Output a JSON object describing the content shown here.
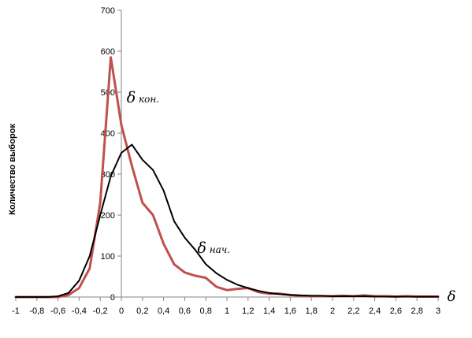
{
  "chart_data": {
    "type": "line",
    "ylabel": "Количество выборок",
    "xlabel": "δ",
    "xlim": [
      -1,
      3
    ],
    "ylim": [
      0,
      700
    ],
    "x_ticks": [
      "-1",
      "-0,8",
      "-0,6",
      "-0,4",
      "-0,2",
      "0",
      "0,2",
      "0,4",
      "0,6",
      "0,8",
      "1",
      "1,2",
      "1,4",
      "1,6",
      "1,8",
      "2",
      "2,2",
      "2,4",
      "2,6",
      "2,8",
      "3"
    ],
    "y_ticks": [
      "0",
      "100",
      "200",
      "300",
      "400",
      "500",
      "600",
      "700"
    ],
    "grid": false,
    "legend": "none",
    "x": [
      -1,
      -0.9,
      -0.8,
      -0.7,
      -0.6,
      -0.5,
      -0.4,
      -0.3,
      -0.2,
      -0.1,
      0,
      0.1,
      0.2,
      0.3,
      0.4,
      0.5,
      0.6,
      0.7,
      0.8,
      0.9,
      1,
      1.1,
      1.2,
      1.3,
      1.4,
      1.5,
      1.6,
      1.7,
      1.8,
      1.9,
      2,
      2.1,
      2.2,
      2.3,
      2.4,
      2.5,
      2.6,
      2.7,
      2.8,
      2.9,
      3
    ],
    "series": [
      {
        "name": "δ кон.",
        "color": "#c0504d",
        "values": [
          0,
          0,
          0,
          0,
          0,
          5,
          22,
          70,
          230,
          585,
          420,
          320,
          230,
          200,
          130,
          80,
          60,
          52,
          47,
          25,
          17,
          20,
          22,
          12,
          8,
          8,
          5,
          3,
          2,
          2,
          2,
          3,
          2,
          4,
          2,
          2,
          1,
          2,
          1,
          1,
          1
        ]
      },
      {
        "name": "δ нач.",
        "color": "#000000",
        "values": [
          0,
          0,
          0,
          0,
          2,
          10,
          40,
          100,
          200,
          295,
          352,
          372,
          335,
          310,
          260,
          185,
          145,
          115,
          80,
          58,
          42,
          30,
          22,
          15,
          10,
          7,
          5,
          4,
          3,
          3,
          2,
          2,
          2,
          2,
          1,
          1,
          1,
          1,
          1,
          1,
          1
        ]
      }
    ],
    "annotations": [
      {
        "text": "δ кон.",
        "x": 0.05,
        "y": 475
      },
      {
        "text": "δ нач.",
        "x": 0.72,
        "y": 108
      }
    ]
  }
}
